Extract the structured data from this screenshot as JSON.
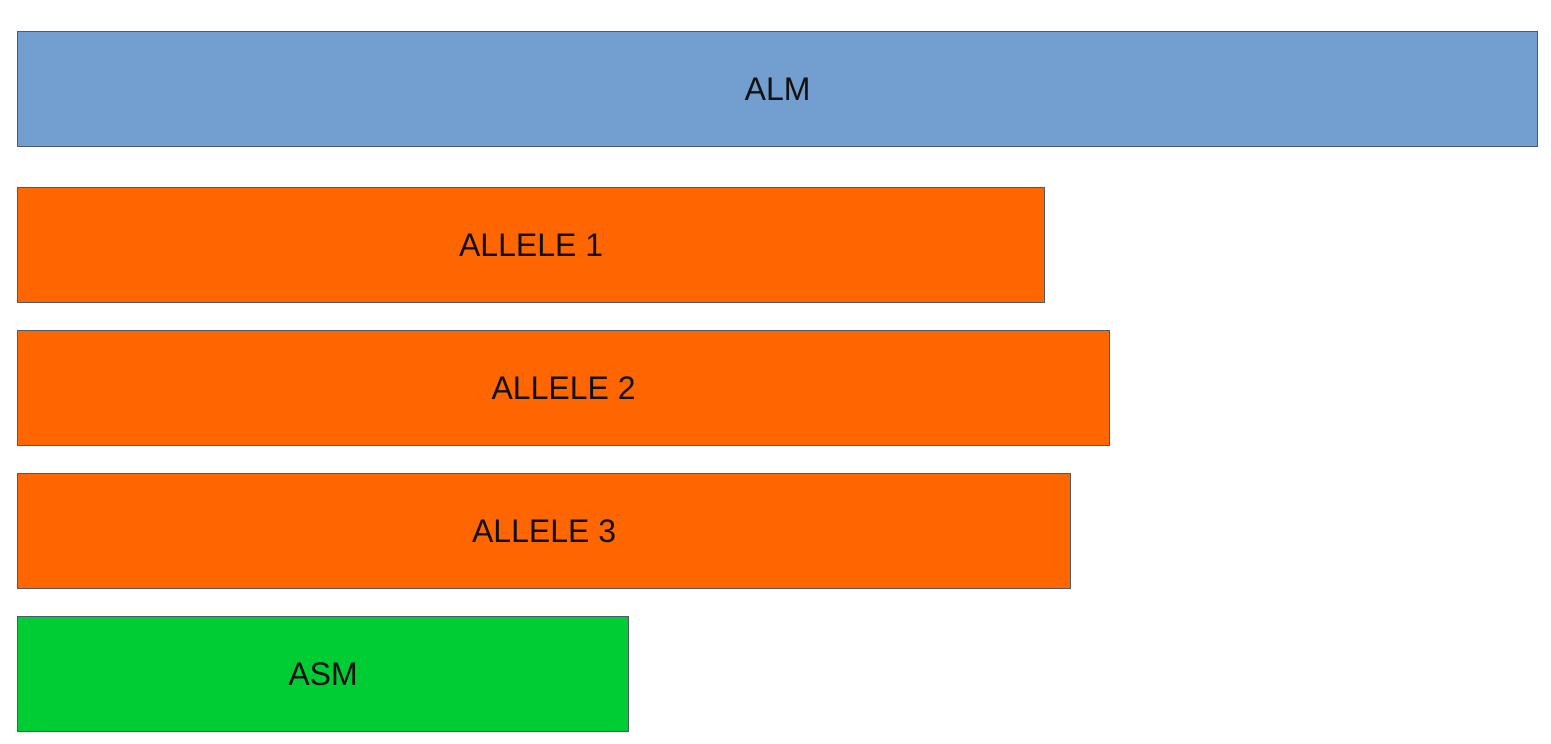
{
  "blocks": [
    {
      "label": "ALM",
      "color": "#729fcf"
    },
    {
      "label": "ALLELE 1",
      "color": "#ff6600"
    },
    {
      "label": "ALLELE 2",
      "color": "#ff6600"
    },
    {
      "label": "ALLELE 3",
      "color": "#ff6600"
    },
    {
      "label": "ASM",
      "color": "#00cc33"
    }
  ]
}
